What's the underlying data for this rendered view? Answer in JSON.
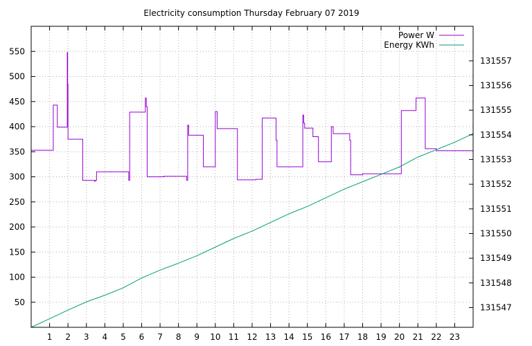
{
  "chart_data": {
    "type": "line",
    "title": "Electricity consumption Thursday February 07 2019",
    "xlabel": "",
    "ylabel": "",
    "y2label": "",
    "xlim": [
      0,
      24
    ],
    "ylim": [
      0,
      600
    ],
    "y2lim": [
      131546.2,
      131558.4
    ],
    "x_ticks": [
      1,
      2,
      3,
      4,
      5,
      6,
      7,
      8,
      9,
      10,
      11,
      12,
      13,
      14,
      15,
      16,
      17,
      18,
      19,
      20,
      21,
      22,
      23
    ],
    "y_ticks": [
      50,
      100,
      150,
      200,
      250,
      300,
      350,
      400,
      450,
      500,
      550
    ],
    "y2_ticks": [
      131547,
      131548,
      131549,
      131550,
      131551,
      131552,
      131553,
      131554,
      131555,
      131556,
      131557
    ],
    "grid": true,
    "legend_position": "top-right",
    "series": [
      {
        "name": "Power W",
        "axis": "left",
        "color": "#9400d3",
        "step": true,
        "x": [
          0,
          1.2,
          1.22,
          1.42,
          1.95,
          1.96,
          1.98,
          2.0,
          2.02,
          2.04,
          2.8,
          3.45,
          3.48,
          3.55,
          4.15,
          5.3,
          5.35,
          6.2,
          6.25,
          6.3,
          7.2,
          8.45,
          8.5,
          8.55,
          9.2,
          9.35,
          9.4,
          10.0,
          10.1,
          10.4,
          11.2,
          12.1,
          12.2,
          12.55,
          12.6,
          13.3,
          13.35,
          13.4,
          14.75,
          14.8,
          14.85,
          15.1,
          15.3,
          15.6,
          15.7,
          16.2,
          16.3,
          16.4,
          16.45,
          16.6,
          16.7,
          17.3,
          17.35,
          17.45,
          18.0,
          18.2,
          19.5,
          20.1,
          20.9,
          21.4,
          22.0,
          23.5,
          24.0
        ],
        "y": [
          353,
          443,
          443,
          399,
          399,
          548,
          485,
          375,
          375,
          375,
          293,
          291,
          293,
          310,
          310,
          293,
          429,
          457,
          440,
          300,
          301,
          293,
          403,
          383,
          383,
          320,
          320,
          430,
          396,
          396,
          294,
          294,
          295,
          417,
          417,
          373,
          320,
          320,
          423,
          407,
          397,
          397,
          380,
          330,
          330,
          330,
          400,
          386,
          386,
          386,
          386,
          373,
          304,
          304,
          306,
          306,
          306,
          432,
          457,
          356,
          352,
          352,
          352
        ]
      },
      {
        "name": "Energy KWh",
        "axis": "right",
        "color": "#009e73",
        "step": false,
        "x": [
          0,
          1,
          2,
          3,
          4,
          5,
          6,
          7,
          8,
          9,
          10,
          11,
          12,
          13,
          14,
          15,
          16,
          17,
          18,
          19,
          20,
          21,
          22,
          23,
          24
        ],
        "y": [
          131546.2,
          131546.55,
          131546.9,
          131547.23,
          131547.5,
          131547.8,
          131548.2,
          131548.52,
          131548.8,
          131549.1,
          131549.45,
          131549.8,
          131550.1,
          131550.45,
          131550.8,
          131551.1,
          131551.45,
          131551.8,
          131552.1,
          131552.4,
          131552.7,
          131553.1,
          131553.4,
          131553.7,
          131554.05
        ]
      }
    ]
  }
}
